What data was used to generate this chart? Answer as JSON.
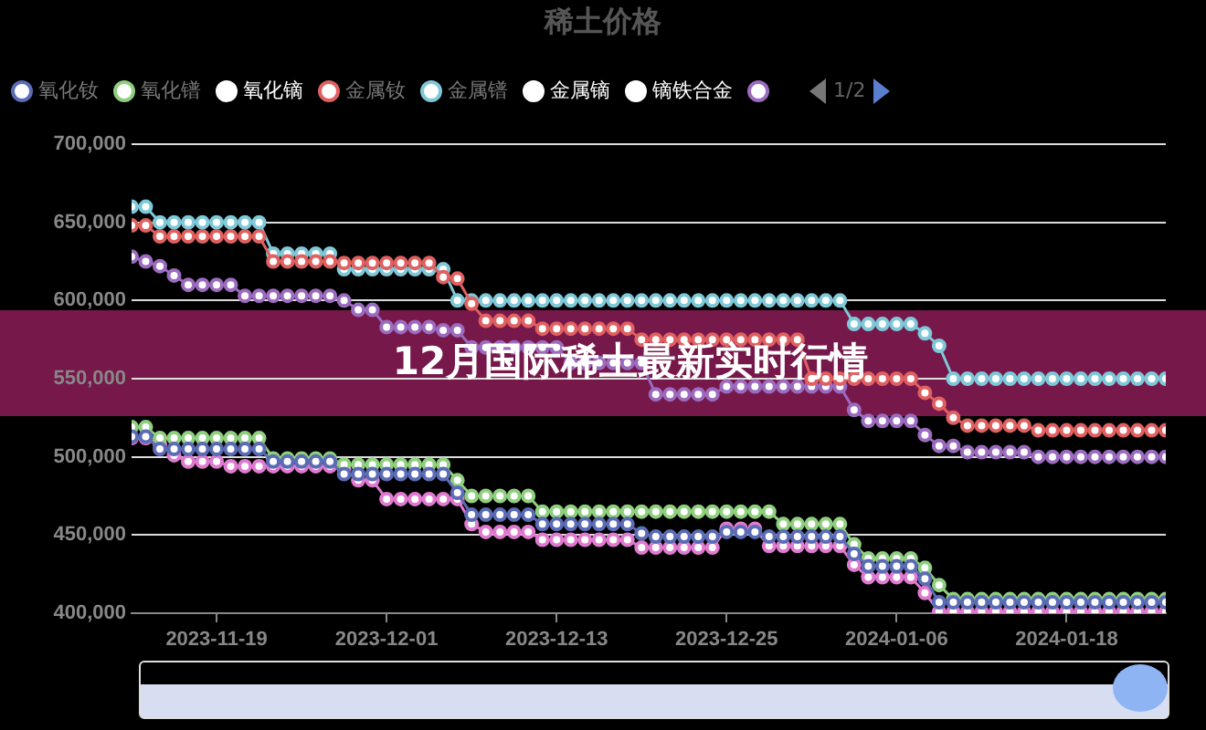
{
  "chart_data": {
    "type": "line",
    "title": "稀土价格",
    "annotations": [
      "12月国际稀土最新实时行情",
      "1/2"
    ],
    "x": [
      "2023-11-13",
      "2023-11-14",
      "2023-11-15",
      "2023-11-16",
      "2023-11-17",
      "2023-11-18",
      "2023-11-19",
      "2023-11-20",
      "2023-11-21",
      "2023-11-22",
      "2023-11-23",
      "2023-11-24",
      "2023-11-25",
      "2023-11-26",
      "2023-11-27",
      "2023-11-28",
      "2023-11-29",
      "2023-11-30",
      "2023-12-01",
      "2023-12-02",
      "2023-12-03",
      "2023-12-04",
      "2023-12-05",
      "2023-12-06",
      "2023-12-07",
      "2023-12-08",
      "2023-12-09",
      "2023-12-10",
      "2023-12-11",
      "2023-12-12",
      "2023-12-13",
      "2023-12-14",
      "2023-12-15",
      "2023-12-16",
      "2023-12-17",
      "2023-12-18",
      "2023-12-19",
      "2023-12-20",
      "2023-12-21",
      "2023-12-22",
      "2023-12-23",
      "2023-12-24",
      "2023-12-25",
      "2023-12-26",
      "2023-12-27",
      "2023-12-28",
      "2023-12-29",
      "2023-12-30",
      "2023-12-31",
      "2024-01-01",
      "2024-01-02",
      "2024-01-03",
      "2024-01-04",
      "2024-01-05",
      "2024-01-06",
      "2024-01-07",
      "2024-01-08",
      "2024-01-09",
      "2024-01-10",
      "2024-01-11",
      "2024-01-12",
      "2024-01-13",
      "2024-01-14",
      "2024-01-15",
      "2024-01-16",
      "2024-01-17",
      "2024-01-18",
      "2024-01-19",
      "2024-01-20",
      "2024-01-21",
      "2024-01-22",
      "2024-01-23",
      "2024-01-24",
      "2024-01-25"
    ],
    "series": [
      {
        "name": "氧化钕",
        "color": "#5b6bb5",
        "values": [
          513000,
          513000,
          505000,
          505000,
          505000,
          505000,
          505000,
          505000,
          505000,
          505000,
          497000,
          497000,
          497000,
          497000,
          497000,
          489000,
          489000,
          489000,
          489000,
          489000,
          489000,
          489000,
          489000,
          477000,
          463000,
          463000,
          463000,
          463000,
          463000,
          457000,
          457000,
          457000,
          457000,
          457000,
          457000,
          457000,
          451000,
          449000,
          449000,
          449000,
          449000,
          449000,
          452000,
          452000,
          452000,
          449000,
          449000,
          449000,
          449000,
          449000,
          449000,
          438000,
          430000,
          430000,
          430000,
          430000,
          422000,
          407000,
          407000,
          407000,
          407000,
          407000,
          407000,
          407000,
          407000,
          407000,
          407000,
          407000,
          407000,
          407000,
          407000,
          407000,
          407000,
          407000
        ]
      },
      {
        "name": "氧化镨",
        "color": "#8fcf7f",
        "values": [
          519000,
          519000,
          512000,
          512000,
          512000,
          512000,
          512000,
          512000,
          512000,
          512000,
          499000,
          499000,
          499000,
          499000,
          499000,
          495000,
          495000,
          495000,
          495000,
          495000,
          495000,
          495000,
          495000,
          485000,
          475000,
          475000,
          475000,
          475000,
          475000,
          465000,
          465000,
          465000,
          465000,
          465000,
          465000,
          465000,
          465000,
          465000,
          465000,
          465000,
          465000,
          465000,
          465000,
          465000,
          465000,
          465000,
          457000,
          457000,
          457000,
          457000,
          457000,
          444000,
          435000,
          435000,
          435000,
          435000,
          429000,
          418000,
          409000,
          409000,
          409000,
          409000,
          409000,
          409000,
          409000,
          409000,
          409000,
          409000,
          409000,
          409000,
          409000,
          409000,
          409000,
          409000
        ]
      },
      {
        "name": "氧化镝",
        "color": "#ffffff",
        "values": [
          null,
          null,
          null,
          null,
          null,
          null,
          null,
          null,
          null,
          null,
          null,
          null,
          null,
          null,
          null,
          null,
          null,
          null,
          null,
          null,
          null,
          null,
          null,
          null,
          null,
          null,
          null,
          null,
          null,
          null,
          null,
          null,
          null,
          null,
          null,
          null,
          null,
          null,
          null,
          null,
          null,
          null,
          null,
          null,
          null,
          null,
          null,
          null,
          null,
          null,
          null,
          null,
          null,
          null,
          null,
          null,
          null,
          null,
          null,
          null,
          null,
          null,
          null,
          null,
          null,
          null,
          null,
          null,
          null,
          null,
          null,
          null,
          null,
          null
        ]
      },
      {
        "name": "金属钕",
        "color": "#e06060",
        "values": [
          648000,
          648000,
          641000,
          641000,
          641000,
          641000,
          641000,
          641000,
          641000,
          641000,
          625000,
          625000,
          625000,
          625000,
          625000,
          624000,
          624000,
          624000,
          624000,
          624000,
          624000,
          624000,
          615000,
          614000,
          598000,
          587000,
          587000,
          587000,
          587000,
          582000,
          582000,
          582000,
          582000,
          582000,
          582000,
          582000,
          575000,
          575000,
          575000,
          575000,
          575000,
          575000,
          575000,
          575000,
          575000,
          575000,
          575000,
          575000,
          550000,
          550000,
          550000,
          550000,
          550000,
          550000,
          550000,
          550000,
          541000,
          534000,
          525000,
          520000,
          520000,
          520000,
          520000,
          520000,
          517000,
          517000,
          517000,
          517000,
          517000,
          517000,
          517000,
          517000,
          517000,
          517000
        ]
      },
      {
        "name": "金属镨",
        "color": "#7ec8d8",
        "values": [
          660000,
          660000,
          650000,
          650000,
          650000,
          650000,
          650000,
          650000,
          650000,
          650000,
          630000,
          630000,
          630000,
          630000,
          630000,
          620000,
          620000,
          620000,
          620000,
          620000,
          620000,
          620000,
          620000,
          600000,
          600000,
          600000,
          600000,
          600000,
          600000,
          600000,
          600000,
          600000,
          600000,
          600000,
          600000,
          600000,
          600000,
          600000,
          600000,
          600000,
          600000,
          600000,
          600000,
          600000,
          600000,
          600000,
          600000,
          600000,
          600000,
          600000,
          600000,
          585000,
          585000,
          585000,
          585000,
          585000,
          579000,
          571000,
          550000,
          550000,
          550000,
          550000,
          550000,
          550000,
          550000,
          550000,
          550000,
          550000,
          550000,
          550000,
          550000,
          550000,
          550000,
          550000
        ]
      },
      {
        "name": "金属镝",
        "color": "#ffffff",
        "values": [
          null,
          null,
          null,
          null,
          null,
          null,
          null,
          null,
          null,
          null,
          null,
          null,
          null,
          null,
          null,
          null,
          null,
          null,
          null,
          null,
          null,
          null,
          null,
          null,
          null,
          null,
          null,
          null,
          null,
          null,
          null,
          null,
          null,
          null,
          null,
          null,
          null,
          null,
          null,
          null,
          null,
          null,
          null,
          null,
          null,
          null,
          null,
          null,
          null,
          null,
          null,
          null,
          null,
          null,
          null,
          null,
          null,
          null,
          null,
          null,
          null,
          null,
          null,
          null,
          null,
          null,
          null,
          null,
          null,
          null,
          null,
          null,
          null,
          null
        ]
      },
      {
        "name": "镝铁合金",
        "color": "#ffffff",
        "values": [
          null,
          null,
          null,
          null,
          null,
          null,
          null,
          null,
          null,
          null,
          null,
          null,
          null,
          null,
          null,
          null,
          null,
          null,
          null,
          null,
          null,
          null,
          null,
          null,
          null,
          null,
          null,
          null,
          null,
          null,
          null,
          null,
          null,
          null,
          null,
          null,
          null,
          null,
          null,
          null,
          null,
          null,
          null,
          null,
          null,
          null,
          null,
          null,
          null,
          null,
          null,
          null,
          null,
          null,
          null,
          null,
          null,
          null,
          null,
          null,
          null,
          null,
          null,
          null,
          null,
          null,
          null,
          null,
          null,
          null,
          null,
          null,
          null,
          null
        ]
      },
      {
        "color": "#9b6bbf",
        "values": [
          628000,
          625000,
          622000,
          616000,
          610000,
          610000,
          610000,
          610000,
          603000,
          603000,
          603000,
          603000,
          603000,
          603000,
          603000,
          600000,
          594000,
          594000,
          583000,
          583000,
          583000,
          583000,
          581000,
          581000,
          570000,
          570000,
          570000,
          570000,
          570000,
          570000,
          570000,
          560000,
          560000,
          560000,
          560000,
          560000,
          560000,
          540000,
          540000,
          540000,
          540000,
          540000,
          545000,
          545000,
          545000,
          545000,
          545000,
          545000,
          545000,
          545000,
          545000,
          530000,
          523000,
          523000,
          523000,
          523000,
          514000,
          507000,
          507000,
          503000,
          503000,
          503000,
          503000,
          503000,
          500000,
          500000,
          500000,
          500000,
          500000,
          500000,
          500000,
          500000,
          500000,
          500000
        ]
      },
      {
        "color": "#e07ad0",
        "values": [
          512000,
          512000,
          508000,
          501000,
          497000,
          497000,
          497000,
          494000,
          494000,
          494000,
          494000,
          494000,
          494000,
          494000,
          494000,
          492000,
          485000,
          485000,
          473000,
          473000,
          473000,
          473000,
          473000,
          473000,
          457000,
          452000,
          452000,
          452000,
          452000,
          447000,
          447000,
          447000,
          447000,
          447000,
          447000,
          447000,
          442000,
          442000,
          442000,
          442000,
          442000,
          442000,
          454000,
          454000,
          454000,
          443000,
          443000,
          443000,
          443000,
          443000,
          443000,
          431000,
          423000,
          423000,
          423000,
          423000,
          413000,
          401000,
          401000,
          401000,
          401000,
          401000,
          401000,
          401000,
          401000,
          401000,
          401000,
          401000,
          401000,
          401000,
          401000,
          401000,
          401000,
          401000
        ]
      }
    ],
    "xlim": [
      "2023-11-13",
      "2024-01-25"
    ],
    "xticks": [
      "2023-11-19",
      "2023-12-01",
      "2023-12-13",
      "2023-12-25",
      "2024-01-06",
      "2024-01-18"
    ],
    "ylim": [
      400000,
      700000
    ],
    "yticks": [
      {
        "value": 400000,
        "label": "400,000"
      },
      {
        "value": 450000,
        "label": "450,000"
      },
      {
        "value": 500000,
        "label": "500,000"
      },
      {
        "value": 550000,
        "label": "550,000"
      },
      {
        "value": 600000,
        "label": "600,000"
      },
      {
        "value": 650000,
        "label": "650,000"
      },
      {
        "value": 700000,
        "label": "700,000"
      }
    ],
    "grid": "y",
    "legend": "top",
    "marker": "circle",
    "line_style": "solid"
  }
}
